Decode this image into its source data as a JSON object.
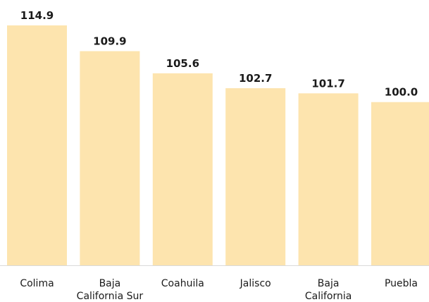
{
  "chart_data": {
    "type": "bar",
    "title": "",
    "xlabel": "",
    "ylabel": "",
    "categories": [
      [
        "Colima"
      ],
      [
        "Baja",
        "California Sur"
      ],
      [
        "Coahuila"
      ],
      [
        "Jalisco"
      ],
      [
        "Baja",
        "California"
      ],
      [
        "Puebla"
      ]
    ],
    "values": [
      114.9,
      109.9,
      105.6,
      102.7,
      101.7,
      100.0
    ],
    "value_labels": [
      "114.9",
      "109.9",
      "105.6",
      "102.7",
      "101.7",
      "100.0"
    ],
    "ylim": [
      68.3,
      114.9
    ],
    "grid": false,
    "legend": "none",
    "bar_color": "#fde4ae"
  }
}
